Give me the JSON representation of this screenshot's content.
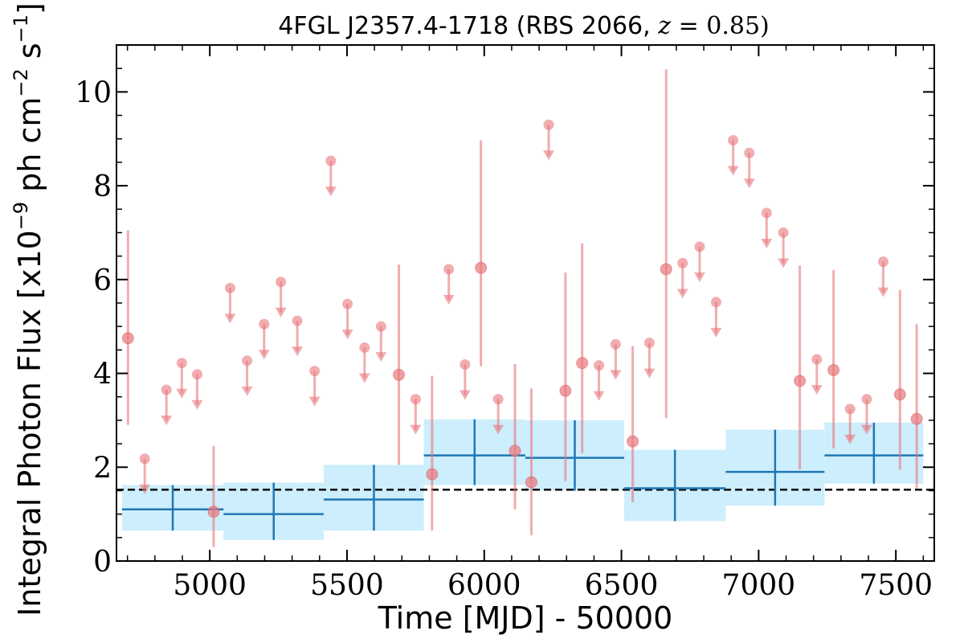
{
  "chart_data": {
    "type": "scatter",
    "title_parts": {
      "source": "4FGL J2357.4-1718 (RBS 2066, ",
      "var": "z",
      "eq": " = 0.85)"
    },
    "xlabel": "Time [MJD] - 50000",
    "ylabel_parts": {
      "pre": "Integral Photon Flux [x10",
      "exp1": "−9",
      "mid": " ph cm",
      "exp2": "−2",
      "mid2": " s",
      "exp3": "−1",
      "post": "]"
    },
    "xlim": [
      4660,
      7640
    ],
    "ylim": [
      0,
      11
    ],
    "xticks": [
      5000,
      5500,
      6000,
      6500,
      7000,
      7500
    ],
    "yticks": [
      0,
      2,
      4,
      6,
      8,
      10
    ],
    "mean_flux": 1.52,
    "colors": {
      "points": "#e8777c",
      "bins_line": "#1f77b4",
      "bins_fill": "#cdeefc",
      "mean_line": "#000000"
    },
    "detections": [
      {
        "x": 4702,
        "y": 4.75,
        "lo": 2.9,
        "hi": 7.05
      },
      {
        "x": 5014,
        "y": 1.05,
        "lo": 0.3,
        "hi": 2.45
      },
      {
        "x": 5689,
        "y": 3.97,
        "lo": 2.05,
        "hi": 6.32
      },
      {
        "x": 5810,
        "y": 1.85,
        "lo": 0.65,
        "hi": 3.95
      },
      {
        "x": 5988,
        "y": 6.25,
        "lo": 4.15,
        "hi": 8.97
      },
      {
        "x": 6112,
        "y": 2.35,
        "lo": 1.1,
        "hi": 4.2
      },
      {
        "x": 6172,
        "y": 1.68,
        "lo": 0.55,
        "hi": 3.68
      },
      {
        "x": 6296,
        "y": 3.63,
        "lo": 1.7,
        "hi": 6.15
      },
      {
        "x": 6357,
        "y": 4.22,
        "lo": 2.3,
        "hi": 6.77
      },
      {
        "x": 6541,
        "y": 2.55,
        "lo": 1.25,
        "hi": 4.58
      },
      {
        "x": 6663,
        "y": 6.22,
        "lo": 3.05,
        "hi": 10.48
      },
      {
        "x": 7150,
        "y": 3.84,
        "lo": 1.95,
        "hi": 6.3
      },
      {
        "x": 7273,
        "y": 4.07,
        "lo": 2.4,
        "hi": 6.2
      },
      {
        "x": 7515,
        "y": 3.55,
        "lo": 1.95,
        "hi": 5.78
      },
      {
        "x": 7576,
        "y": 3.03,
        "lo": 1.55,
        "hi": 5.05
      }
    ],
    "upper_limits": [
      {
        "x": 4763,
        "y": 2.18
      },
      {
        "x": 4842,
        "y": 3.65
      },
      {
        "x": 4898,
        "y": 4.22
      },
      {
        "x": 4954,
        "y": 3.98
      },
      {
        "x": 5074,
        "y": 5.82
      },
      {
        "x": 5136,
        "y": 4.27
      },
      {
        "x": 5198,
        "y": 5.05
      },
      {
        "x": 5259,
        "y": 5.95
      },
      {
        "x": 5319,
        "y": 5.12
      },
      {
        "x": 5382,
        "y": 4.05
      },
      {
        "x": 5441,
        "y": 8.53
      },
      {
        "x": 5502,
        "y": 5.48
      },
      {
        "x": 5564,
        "y": 4.55
      },
      {
        "x": 5624,
        "y": 5.0
      },
      {
        "x": 5750,
        "y": 3.45
      },
      {
        "x": 5871,
        "y": 6.22
      },
      {
        "x": 5930,
        "y": 4.19
      },
      {
        "x": 6051,
        "y": 3.45
      },
      {
        "x": 6235,
        "y": 9.3
      },
      {
        "x": 6418,
        "y": 4.17
      },
      {
        "x": 6479,
        "y": 4.62
      },
      {
        "x": 6602,
        "y": 4.65
      },
      {
        "x": 6723,
        "y": 6.35
      },
      {
        "x": 6785,
        "y": 6.7
      },
      {
        "x": 6845,
        "y": 5.52
      },
      {
        "x": 6907,
        "y": 8.97
      },
      {
        "x": 6966,
        "y": 8.7
      },
      {
        "x": 7029,
        "y": 7.42
      },
      {
        "x": 7090,
        "y": 7.0
      },
      {
        "x": 7212,
        "y": 4.3
      },
      {
        "x": 7333,
        "y": 3.24
      },
      {
        "x": 7394,
        "y": 3.45
      },
      {
        "x": 7454,
        "y": 6.38
      }
    ],
    "bins": [
      {
        "x0": 4680,
        "x1": 5050,
        "xc": 4865,
        "y": 1.1,
        "lo": 0.65,
        "hi": 1.62
      },
      {
        "x0": 5050,
        "x1": 5415,
        "xc": 5233,
        "y": 1.0,
        "lo": 0.45,
        "hi": 1.67
      },
      {
        "x0": 5415,
        "x1": 5780,
        "xc": 5598,
        "y": 1.31,
        "lo": 0.65,
        "hi": 2.05
      },
      {
        "x0": 5780,
        "x1": 6150,
        "xc": 5965,
        "y": 2.25,
        "lo": 1.62,
        "hi": 3.02
      },
      {
        "x0": 6150,
        "x1": 6510,
        "xc": 6330,
        "y": 2.2,
        "lo": 1.5,
        "hi": 3.0
      },
      {
        "x0": 6510,
        "x1": 6880,
        "xc": 6695,
        "y": 1.55,
        "lo": 0.85,
        "hi": 2.37
      },
      {
        "x0": 6880,
        "x1": 7240,
        "xc": 7060,
        "y": 1.9,
        "lo": 1.18,
        "hi": 2.8
      },
      {
        "x0": 7240,
        "x1": 7600,
        "xc": 7420,
        "y": 2.25,
        "lo": 1.65,
        "hi": 2.95
      }
    ]
  }
}
